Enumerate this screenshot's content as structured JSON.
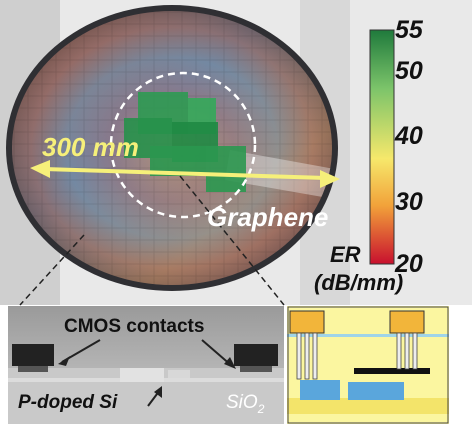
{
  "wafer": {
    "diameter_label": "300 mm",
    "material_label": "Graphene"
  },
  "colorbar": {
    "ticks": [
      "55",
      "50",
      "40",
      "30",
      "20"
    ],
    "title_line1": "ER",
    "title_line2": "(dB/mm)",
    "colors": [
      "#1f7a3c",
      "#7cc46a",
      "#f6e86b",
      "#f2a23a",
      "#c8102e"
    ]
  },
  "cross_section": {
    "contacts_label": "CMOS contacts",
    "substrate_label": "P-doped Si",
    "oxide_label": "SiO",
    "oxide_subscript": "2"
  }
}
